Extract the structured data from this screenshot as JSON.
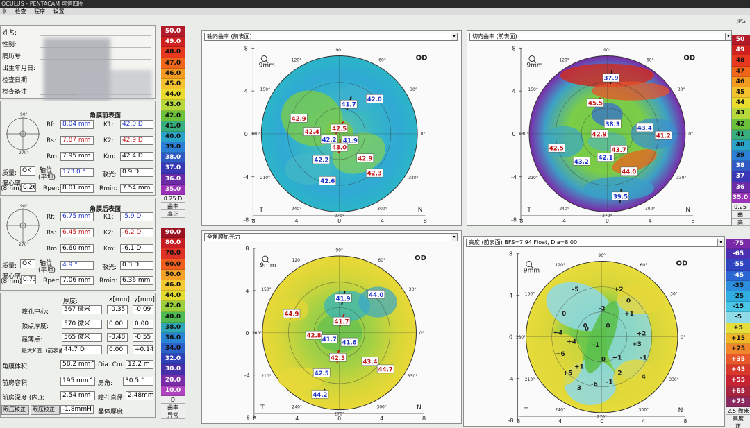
{
  "window": {
    "title": "OCULUS - PENTACAM 可信四图",
    "menu": [
      "本",
      "检查",
      "程序",
      "设置"
    ],
    "corner": "JPG"
  },
  "patient": {
    "labels": [
      "姓名:",
      "性别:",
      "病历号:",
      "出生年月日:",
      "检查日期:",
      "检查备注:"
    ]
  },
  "front": {
    "title": "角膜前表面",
    "rows": [
      {
        "l1": "Rf:",
        "v1": "8.04 mm",
        "l2": "K1:",
        "v2": "42.0 D"
      },
      {
        "l1": "Rs:",
        "v1": "7.87 mm",
        "l2": "K2:",
        "v2": "42.9 D"
      },
      {
        "l1": "Rm:",
        "v1": "7.95 mm",
        "l2": "Km:",
        "v2": "42.4 D"
      }
    ],
    "quality_label": "质量:",
    "quality": "OK",
    "axis_label": "轴位:",
    "axis_sub": "(平坦)",
    "axis": "173.0 °",
    "astig_label": "散光:",
    "astig": "0.9 D",
    "ecc_label": "偏心率",
    "ecc_sub": "(8mm)",
    "ecc": "0.26",
    "rper_label": "Rper:",
    "rper": "8.01 mm",
    "rmin_label": "Rmin:",
    "rmin": "7.54 mm"
  },
  "back": {
    "title": "角膜后表面",
    "rows": [
      {
        "l1": "Rf:",
        "v1": "6.75 mm",
        "l2": "K1:",
        "v2": "-5.9 D"
      },
      {
        "l1": "Rs:",
        "v1": "6.45 mm",
        "l2": "K2:",
        "v2": "-6.2 D"
      },
      {
        "l1": "Rm:",
        "v1": "6.60 mm",
        "l2": "Km:",
        "v2": "-6.1 D"
      }
    ],
    "quality_label": "质量:",
    "quality": "OK",
    "axis_label": "轴位:",
    "axis_sub": "(平坦)",
    "axis": "4.9 °",
    "astig_label": "散光:",
    "astig": "0.3 D",
    "ecc_label": "偏心率",
    "ecc_sub": "(8mm)",
    "ecc": "0.73",
    "rper_label": "Rper:",
    "rper": "7.06 mm",
    "rmin_label": "Rmin:",
    "rmin": "6.36 mm"
  },
  "pachy": {
    "head_thick": "厚度:",
    "head_x": "x[mm]",
    "head_y": "y[mm]",
    "rows": [
      {
        "label": "瞳孔中心:",
        "t": "567 微米",
        "x": "-0.35",
        "y": "-0.09"
      },
      {
        "label": "顶点厚度:",
        "t": "570 微米",
        "x": "0.00",
        "y": "0.00"
      },
      {
        "label": "最薄点:",
        "t": "565 微米",
        "x": "-0.48",
        "y": "-0.55"
      },
      {
        "label": "最大K值. (前表面)",
        "t": "44.7 D",
        "x": "0.00",
        "y": "+0.14"
      }
    ],
    "vol_label": "角膜体积:",
    "vol": "58.2 mm^",
    "dia_label": "Dia. Cor.",
    "dia": "12.2 m",
    "ch_vol_label": "前房容积:",
    "ch_vol": "195 mm^",
    "angle_label": "房角:",
    "angle": "30.5 °",
    "depth_label": "前房深度 (内.):",
    "depth": "2.54 mm",
    "pupil_label": "瞳孔直径:",
    "pupil": "2.48mm"
  },
  "buttons": {
    "iop_corr": "眼压校正",
    "iop_corr2": "眼压校正",
    "iop_val": "-1.8mmH",
    "lens": "晶体厚度"
  },
  "scales": {
    "curv": {
      "values": [
        "50.0",
        "49.0",
        "48.0",
        "47.0",
        "46.0",
        "45.0",
        "44.0",
        "43.0",
        "42.0",
        "41.0",
        "40.0",
        "39.0",
        "38.0",
        "37.0",
        "36.0",
        "35.0"
      ],
      "colors": [
        "#b31a2a",
        "#cf2020",
        "#e8391e",
        "#f0661a",
        "#f39a20",
        "#f4c22c",
        "#e9dc2d",
        "#b6d83a",
        "#6cc13a",
        "#38ad7d",
        "#2aa3c8",
        "#2b7fd6",
        "#3159c4",
        "#3a37b6",
        "#6b2ba6",
        "#9b33b8"
      ],
      "foot": [
        "0.25 D",
        "曲率",
        "高正"
      ]
    },
    "curv2": {
      "values": [
        "50",
        "49",
        "48",
        "47",
        "46",
        "45",
        "44",
        "43",
        "42",
        "41",
        "40",
        "39",
        "38",
        "37",
        "36",
        "35.0"
      ],
      "colors": [
        "#b31a2a",
        "#cf2020",
        "#e8391e",
        "#f0661a",
        "#f39a20",
        "#f4c22c",
        "#e9dc2d",
        "#b6d83a",
        "#6cc13a",
        "#38ad7d",
        "#2aa3c8",
        "#2b7fd6",
        "#3159c4",
        "#3a37b6",
        "#6b2ba6",
        "#9b33b8"
      ],
      "foot": [
        "0.25",
        "曲",
        "高"
      ]
    },
    "power": {
      "values": [
        "90.0",
        "80.0",
        "70.0",
        "60.0",
        "50.0",
        "46.0",
        "44.0",
        "42.0",
        "40.0",
        "38.0",
        "36.0",
        "34.0",
        "32.0",
        "30.0",
        "20.0",
        "10.0"
      ],
      "colors": [
        "#9b1322",
        "#c61d24",
        "#de3024",
        "#ef5e1e",
        "#f4a227",
        "#f2c92e",
        "#e1dc2f",
        "#9ad03c",
        "#4fbb52",
        "#2fa7b6",
        "#2a86d4",
        "#2b61c9",
        "#3040b7",
        "#4630a9",
        "#7b2ca8",
        "#b044c0"
      ],
      "foot": [
        "D",
        "曲率",
        "异常"
      ]
    },
    "elev": {
      "values": [
        "-75",
        "-65",
        "-55",
        "-45",
        "-35",
        "-25",
        "-15",
        "-5",
        "+5",
        "+15",
        "+25",
        "+35",
        "+45",
        "+55",
        "+65",
        "+75"
      ],
      "colors": [
        "#7a2aa8",
        "#4b2fb0",
        "#2f45c0",
        "#2b67d3",
        "#2b8ddc",
        "#30aee0",
        "#4ac7e6",
        "#8fdbe8",
        "#e6dc3a",
        "#f1b52a",
        "#f0862a",
        "#e9582a",
        "#d8382a",
        "#c52331",
        "#a8253f",
        "#8b2a60"
      ],
      "foot": [
        "2.5 微米",
        "高度",
        "正"
      ]
    }
  },
  "maps": {
    "axial": {
      "title": "轴向曲率 (前表面)",
      "mm": "9mm",
      "eye": "OD",
      "t": "T",
      "n": "N",
      "yticks": [
        "8",
        "4",
        "0",
        "-4",
        "-8"
      ],
      "xticks": [
        "8",
        "4",
        "0",
        "4",
        "8"
      ],
      "values": [
        {
          "v": "42.5",
          "c": "red"
        },
        {
          "v": "41.7",
          "c": "blue"
        },
        {
          "v": "42.0",
          "c": "blue"
        },
        {
          "v": "42.9",
          "c": "red"
        },
        {
          "v": "42.4",
          "c": "red"
        },
        {
          "v": "42.2",
          "c": "blue"
        },
        {
          "v": "41.9",
          "c": "blue"
        },
        {
          "v": "43.0",
          "c": "red"
        },
        {
          "v": "42.2",
          "c": "blue"
        },
        {
          "v": "42.9",
          "c": "red"
        },
        {
          "v": "42.3",
          "c": "red"
        },
        {
          "v": "42.6",
          "c": "blue"
        }
      ]
    },
    "tangential": {
      "title": "切向曲率 (前表面)",
      "mm": "9mm",
      "eye": "OD",
      "t": "T",
      "n": "N",
      "yticks": [
        "8",
        "4",
        "0",
        "-4",
        "-8"
      ],
      "xticks": [
        "8",
        "4",
        "0",
        "4",
        "8"
      ],
      "values": [
        {
          "v": "37.9",
          "c": "blue"
        },
        {
          "v": "45.5",
          "c": "red"
        },
        {
          "v": "38.3",
          "c": "blue"
        },
        {
          "v": "42.9",
          "c": "red"
        },
        {
          "v": "43.4",
          "c": "blue"
        },
        {
          "v": "41.2",
          "c": "red"
        },
        {
          "v": "42.5",
          "c": "red"
        },
        {
          "v": "43.7",
          "c": "red"
        },
        {
          "v": "43.2",
          "c": "blue"
        },
        {
          "v": "42.1",
          "c": "blue"
        },
        {
          "v": "44.0",
          "c": "red"
        },
        {
          "v": "39.5",
          "c": "blue"
        }
      ]
    },
    "power": {
      "title": "全角膜屈光力",
      "mm": "9mm",
      "eye": "OD",
      "t": "T",
      "n": "N",
      "yticks": [
        "8",
        "4",
        "0",
        "-4",
        "-8"
      ],
      "xticks": [
        "8",
        "4",
        "0",
        "4",
        "8"
      ],
      "values": [
        {
          "v": "41.9",
          "c": "blue"
        },
        {
          "v": "44.0",
          "c": "blue"
        },
        {
          "v": "44.9",
          "c": "red"
        },
        {
          "v": "41.7",
          "c": "red"
        },
        {
          "v": "42.8",
          "c": "red"
        },
        {
          "v": "41.7",
          "c": "blue"
        },
        {
          "v": "41.6",
          "c": "blue"
        },
        {
          "v": "42.5",
          "c": "red"
        },
        {
          "v": "43.4",
          "c": "red"
        },
        {
          "v": "44.7",
          "c": "red"
        },
        {
          "v": "42.5",
          "c": "blue"
        },
        {
          "v": "44.2",
          "c": "blue"
        }
      ]
    },
    "elevation": {
      "title": "高度 (前表面) BFS=7.94 Float, Dia=8.00",
      "mm": "9mm",
      "eye": "OD",
      "t": "T",
      "n": "N",
      "yticks": [
        "8",
        "4",
        "0",
        "-4",
        "-8"
      ],
      "xticks": [
        "8",
        "4",
        "0",
        "4",
        "8"
      ],
      "values": [
        "-5",
        "0",
        "+2",
        "0",
        "-2",
        "+1",
        "0",
        "0",
        "+2",
        "+4",
        "-1",
        "0",
        "+3",
        "+6",
        "+4",
        "0",
        "+1",
        "+5",
        "+1",
        "+2",
        "-1",
        "-6",
        "-1",
        "3",
        "4"
      ]
    }
  },
  "angles": {
    "a90": "90°",
    "a60": "60°",
    "a30": "30°",
    "a180": "180°",
    "a0": "0°",
    "a270": "270°",
    "a240": "240°",
    "a300": "300°",
    "a150": "150°",
    "a120": "120°",
    "a210": "210°",
    "a330": "330°"
  }
}
